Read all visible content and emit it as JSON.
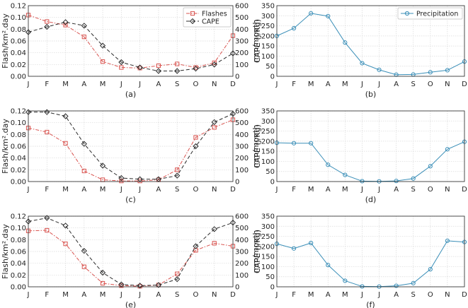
{
  "colors": {
    "flashes": "#d9534f",
    "cape": "#2b2b2b",
    "precip": "#3b8fb8",
    "grid": "#d9d9d9"
  },
  "months": [
    "J",
    "F",
    "M",
    "A",
    "M",
    "J",
    "J",
    "A",
    "S",
    "O",
    "N",
    "D"
  ],
  "chart_data": [
    {
      "id": "a",
      "label": "(a)",
      "type": "line",
      "left_axis": {
        "label": "Flash/km².day",
        "ylim": [
          0,
          0.12
        ],
        "ticks": [
          "0.00",
          "0.02",
          "0.04",
          "0.06",
          "0.08",
          "0.10",
          "0.12"
        ]
      },
      "right_axis": {
        "label": "CAPE (J/Kg)",
        "ylim": [
          0,
          600
        ],
        "ticks": [
          "0",
          "100",
          "200",
          "300",
          "400",
          "500",
          "600"
        ]
      },
      "legend": {
        "position": "top-right",
        "entries": [
          "Flashes",
          "CAPE"
        ]
      },
      "series": [
        {
          "name": "Flashes",
          "axis": "left",
          "values": [
            0.104,
            0.093,
            0.087,
            0.067,
            0.025,
            0.015,
            0.014,
            0.018,
            0.021,
            0.015,
            0.023,
            0.069
          ]
        },
        {
          "name": "CAPE",
          "axis": "right",
          "values": [
            375,
            420,
            460,
            430,
            260,
            120,
            75,
            45,
            45,
            65,
            100,
            195
          ]
        }
      ]
    },
    {
      "id": "b",
      "label": "(b)",
      "type": "line",
      "left_axis": {
        "label": "mm/month",
        "ylim": [
          0,
          350
        ],
        "ticks": [
          "0",
          "50",
          "100",
          "150",
          "200",
          "250",
          "300",
          "350"
        ]
      },
      "legend": {
        "position": "top-right",
        "entries": [
          "Precipitation"
        ]
      },
      "series": [
        {
          "name": "Precipitation",
          "axis": "left",
          "values": [
            200,
            238,
            312,
            298,
            167,
            65,
            32,
            8,
            9,
            20,
            30,
            73
          ]
        }
      ]
    },
    {
      "id": "c",
      "label": "(c)",
      "type": "line",
      "left_axis": {
        "label": "Flash/km².day",
        "ylim": [
          0,
          0.12
        ],
        "ticks": [
          "0.00",
          "0.02",
          "0.04",
          "0.06",
          "0.08",
          "0.10",
          "0.12"
        ]
      },
      "right_axis": {
        "label": "CAPE (J/Kg)",
        "ylim": [
          0,
          600
        ],
        "ticks": [
          "0",
          "100",
          "200",
          "300",
          "400",
          "500",
          "600"
        ]
      },
      "series": [
        {
          "name": "Flashes",
          "axis": "left",
          "values": [
            0.091,
            0.084,
            0.065,
            0.018,
            0.003,
            0.001,
            0.001,
            0.003,
            0.02,
            0.075,
            0.092,
            0.105
          ]
        },
        {
          "name": "CAPE",
          "axis": "right",
          "values": [
            590,
            590,
            555,
            320,
            135,
            30,
            20,
            20,
            50,
            300,
            505,
            575
          ]
        }
      ]
    },
    {
      "id": "d",
      "label": "(d)",
      "type": "line",
      "left_axis": {
        "label": "mm/month",
        "ylim": [
          0,
          350
        ],
        "ticks": [
          "0",
          "50",
          "100",
          "150",
          "200",
          "250",
          "300",
          "350"
        ]
      },
      "series": [
        {
          "name": "Precipitation",
          "axis": "left",
          "values": [
            192,
            190,
            190,
            83,
            33,
            2,
            1,
            3,
            15,
            76,
            160,
            197
          ]
        }
      ]
    },
    {
      "id": "e",
      "label": "(e)",
      "type": "line",
      "left_axis": {
        "label": "Flash/km².day",
        "ylim": [
          0,
          0.12
        ],
        "ticks": [
          "0.00",
          "0.02",
          "0.04",
          "0.06",
          "0.08",
          "0.10",
          "0.12"
        ]
      },
      "right_axis": {
        "label": "CAPE (J/Kg)",
        "ylim": [
          0,
          600
        ],
        "ticks": [
          "0",
          "100",
          "200",
          "300",
          "400",
          "500",
          "600"
        ]
      },
      "series": [
        {
          "name": "Flashes",
          "axis": "left",
          "values": [
            0.095,
            0.096,
            0.073,
            0.034,
            0.006,
            0.002,
            0.001,
            0.003,
            0.022,
            0.062,
            0.074,
            0.069
          ]
        },
        {
          "name": "CAPE",
          "axis": "right",
          "values": [
            555,
            585,
            520,
            305,
            120,
            20,
            10,
            15,
            65,
            345,
            490,
            545
          ]
        }
      ]
    },
    {
      "id": "f",
      "label": "(f)",
      "type": "line",
      "left_axis": {
        "label": "mm/month",
        "ylim": [
          0,
          350
        ],
        "ticks": [
          "0",
          "50",
          "100",
          "150",
          "200",
          "250",
          "300",
          "350"
        ]
      },
      "series": [
        {
          "name": "Precipitation",
          "axis": "left",
          "values": [
            213,
            190,
            217,
            108,
            30,
            2,
            1,
            5,
            18,
            87,
            228,
            222
          ]
        }
      ]
    }
  ]
}
